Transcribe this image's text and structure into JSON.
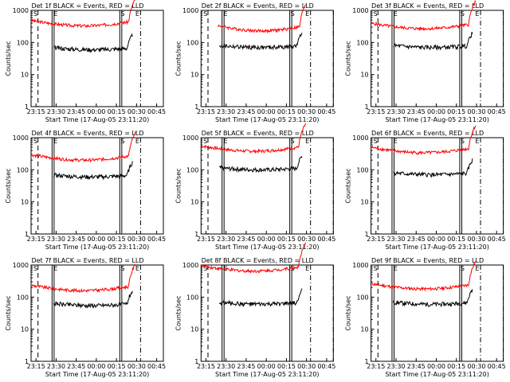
{
  "chart_data": {
    "type": "line",
    "yscale": "log",
    "ylim": [
      1,
      1000
    ],
    "yticks": [
      1,
      10,
      100,
      1000
    ],
    "ytick_labels": [
      "1",
      "10",
      "100",
      "1000"
    ],
    "ylabel": "Counts/sec",
    "xlabel": "Start Time (17-Aug-05 23:11:20)",
    "xlim": [
      "23:11:20",
      "00:50:00"
    ],
    "xticks": [
      "23:15",
      "23:30",
      "23:45",
      "00:00",
      "00:15",
      "00:30",
      "00:45"
    ],
    "series_names": [
      "Events",
      "LLD"
    ],
    "series_colors": {
      "Events": "#000000",
      "LLD": "#ff0000"
    },
    "marker_labels": [
      "S",
      "E",
      "S",
      "E"
    ],
    "panels": [
      {
        "title": "Det 1f BLACK = Events, RED = LLD",
        "events_level": 60,
        "lld_level": 330,
        "events_start": "23:28",
        "lld_start": "23:12"
      },
      {
        "title": "Det 2f BLACK = Events, RED = LLD",
        "events_level": 70,
        "lld_level": 230,
        "events_start": "23:25",
        "lld_start": "23:24"
      },
      {
        "title": "Det 3f BLACK = Events, RED = LLD",
        "events_level": 70,
        "lld_level": 270,
        "events_start": "23:28",
        "lld_start": "23:12"
      },
      {
        "title": "Det 4f BLACK = Events, RED = LLD",
        "events_level": 60,
        "lld_level": 200,
        "events_start": "23:28",
        "lld_start": "23:12"
      },
      {
        "title": "Det 5f BLACK = Events, RED = LLD",
        "events_level": 100,
        "lld_level": 380,
        "events_start": "23:25",
        "lld_start": "23:12"
      },
      {
        "title": "Det 6f BLACK = Events, RED = LLD",
        "events_level": 70,
        "lld_level": 340,
        "events_start": "23:28",
        "lld_start": "23:12"
      },
      {
        "title": "Det 7f BLACK = Events, RED = LLD",
        "events_level": 55,
        "lld_level": 160,
        "events_start": "23:28",
        "lld_start": "23:12"
      },
      {
        "title": "Det 8f BLACK = Events, RED = LLD",
        "events_level": 60,
        "lld_level": 650,
        "events_start": "23:25",
        "lld_start": "23:12"
      },
      {
        "title": "Det 9f BLACK = Events, RED = LLD",
        "events_level": 60,
        "lld_level": 180,
        "events_start": "23:28",
        "lld_start": "23:12"
      }
    ]
  }
}
